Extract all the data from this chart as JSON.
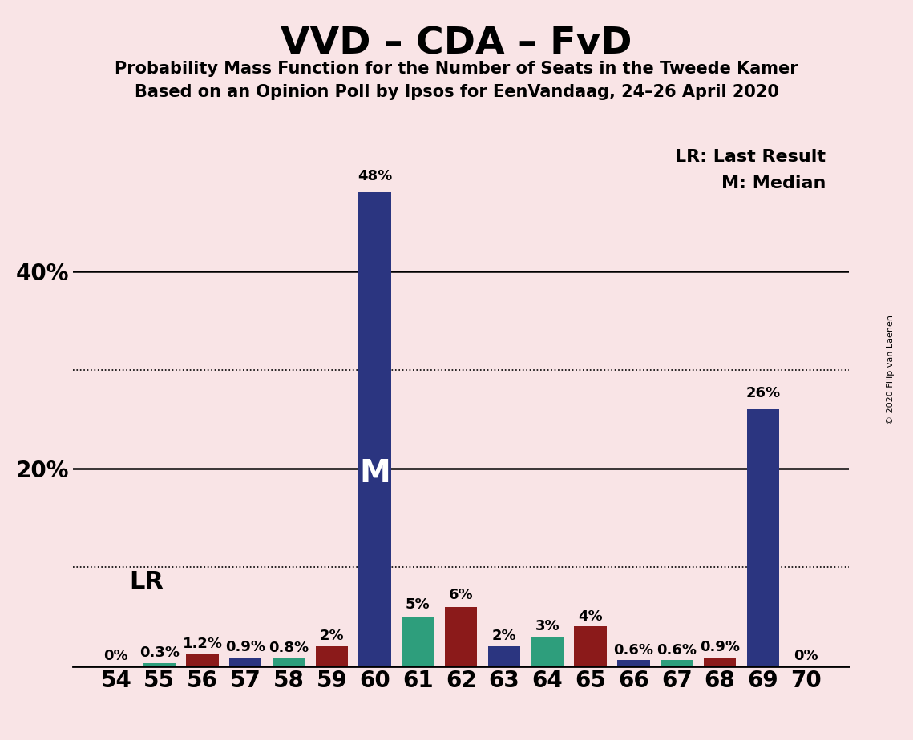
{
  "title": "VVD – CDA – FvD",
  "subtitle1": "Probability Mass Function for the Number of Seats in the Tweede Kamer",
  "subtitle2": "Based on an Opinion Poll by Ipsos for EenVandaag, 24–26 April 2020",
  "copyright": "© 2020 Filip van Laenen",
  "background_color": "#f9e4e6",
  "seats": [
    54,
    55,
    56,
    57,
    58,
    59,
    60,
    61,
    62,
    63,
    64,
    65,
    66,
    67,
    68,
    69,
    70
  ],
  "values": [
    0.0,
    0.3,
    1.2,
    0.9,
    0.8,
    2.0,
    48.0,
    5.0,
    6.0,
    2.0,
    3.0,
    4.0,
    0.6,
    0.6,
    0.9,
    26.0,
    0.0
  ],
  "bar_colors": [
    "#2e9e7c",
    "#2e9e7c",
    "#8b1a1a",
    "#2b3580",
    "#2e9e7c",
    "#8b1a1a",
    "#2b3580",
    "#2e9e7c",
    "#8b1a1a",
    "#2b3580",
    "#2e9e7c",
    "#8b1a1a",
    "#2b3580",
    "#2e9e7c",
    "#8b1a1a",
    "#2b3580",
    "#8b1a1a"
  ],
  "value_labels": [
    "0%",
    "0.3%",
    "1.2%",
    "0.9%",
    "0.8%",
    "2%",
    "48%",
    "5%",
    "6%",
    "2%",
    "3%",
    "4%",
    "0.6%",
    "0.6%",
    "0.9%",
    "26%",
    "0%"
  ],
  "median_seat": 60,
  "ylim": [
    0,
    54
  ],
  "yticks": [
    20,
    40
  ],
  "ytick_labels": [
    "20%",
    "40%"
  ],
  "dotted_lines": [
    10,
    30
  ],
  "solid_lines": [
    20,
    40
  ]
}
